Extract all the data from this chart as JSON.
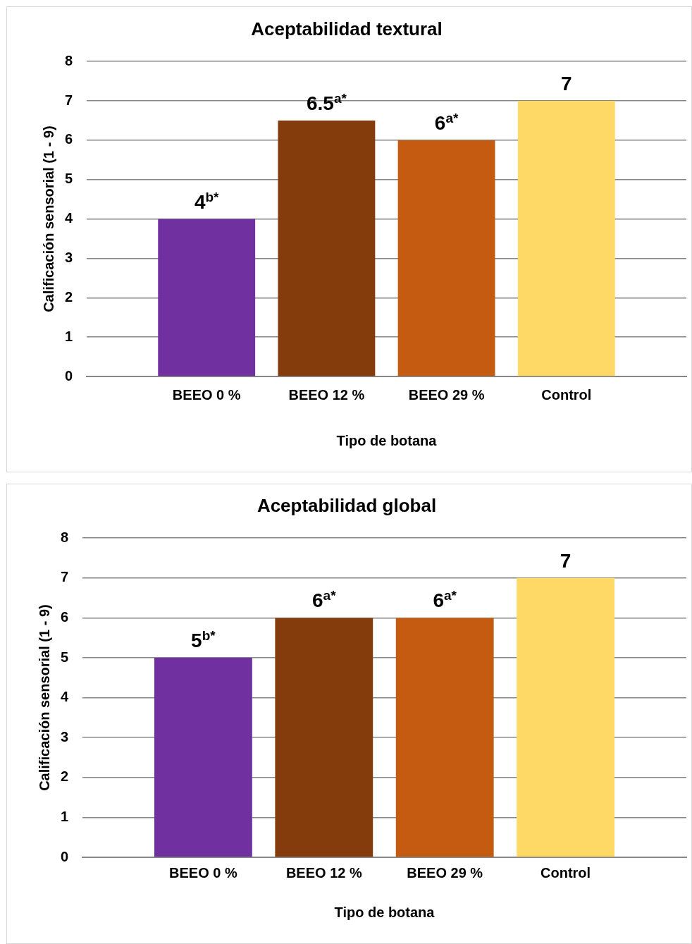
{
  "chart_data": [
    {
      "type": "bar",
      "title": "Aceptabilidad textural",
      "xlabel": "Tipo de botana",
      "ylabel": "Calificación sensorial (1 - 9)",
      "categories": [
        "BEEO 0 %",
        "BEEO 12 %",
        "BEEO 29 %",
        "Control"
      ],
      "values": [
        4,
        6.5,
        6,
        7
      ],
      "colors": [
        "#7030a0",
        "#843c0c",
        "#c55a11",
        "#ffd966"
      ],
      "value_labels": [
        "4$^{b*}$",
        "6.5$^{a*}$",
        "6$^{a*}$",
        "7"
      ],
      "ylim": [
        0,
        8
      ],
      "yticks": [
        0,
        1,
        2,
        3,
        4,
        5,
        6,
        7,
        8
      ],
      "grid": "y"
    },
    {
      "type": "bar",
      "title": "Aceptabilidad global",
      "xlabel": "Tipo de botana",
      "ylabel": "Calificación sensorial (1 - 9)",
      "categories": [
        "BEEO 0 %",
        "BEEO 12 %",
        "BEEO 29 %",
        "Control"
      ],
      "values": [
        5,
        6,
        6,
        7
      ],
      "colors": [
        "#7030a0",
        "#843c0c",
        "#c55a11",
        "#ffd966"
      ],
      "value_labels": [
        "5$^{b*}$",
        "6$^{a*}$",
        "6$^{a*}$",
        "7"
      ],
      "ylim": [
        0,
        8
      ],
      "yticks": [
        0,
        1,
        2,
        3,
        4,
        5,
        6,
        7,
        8
      ],
      "grid": "y"
    }
  ]
}
